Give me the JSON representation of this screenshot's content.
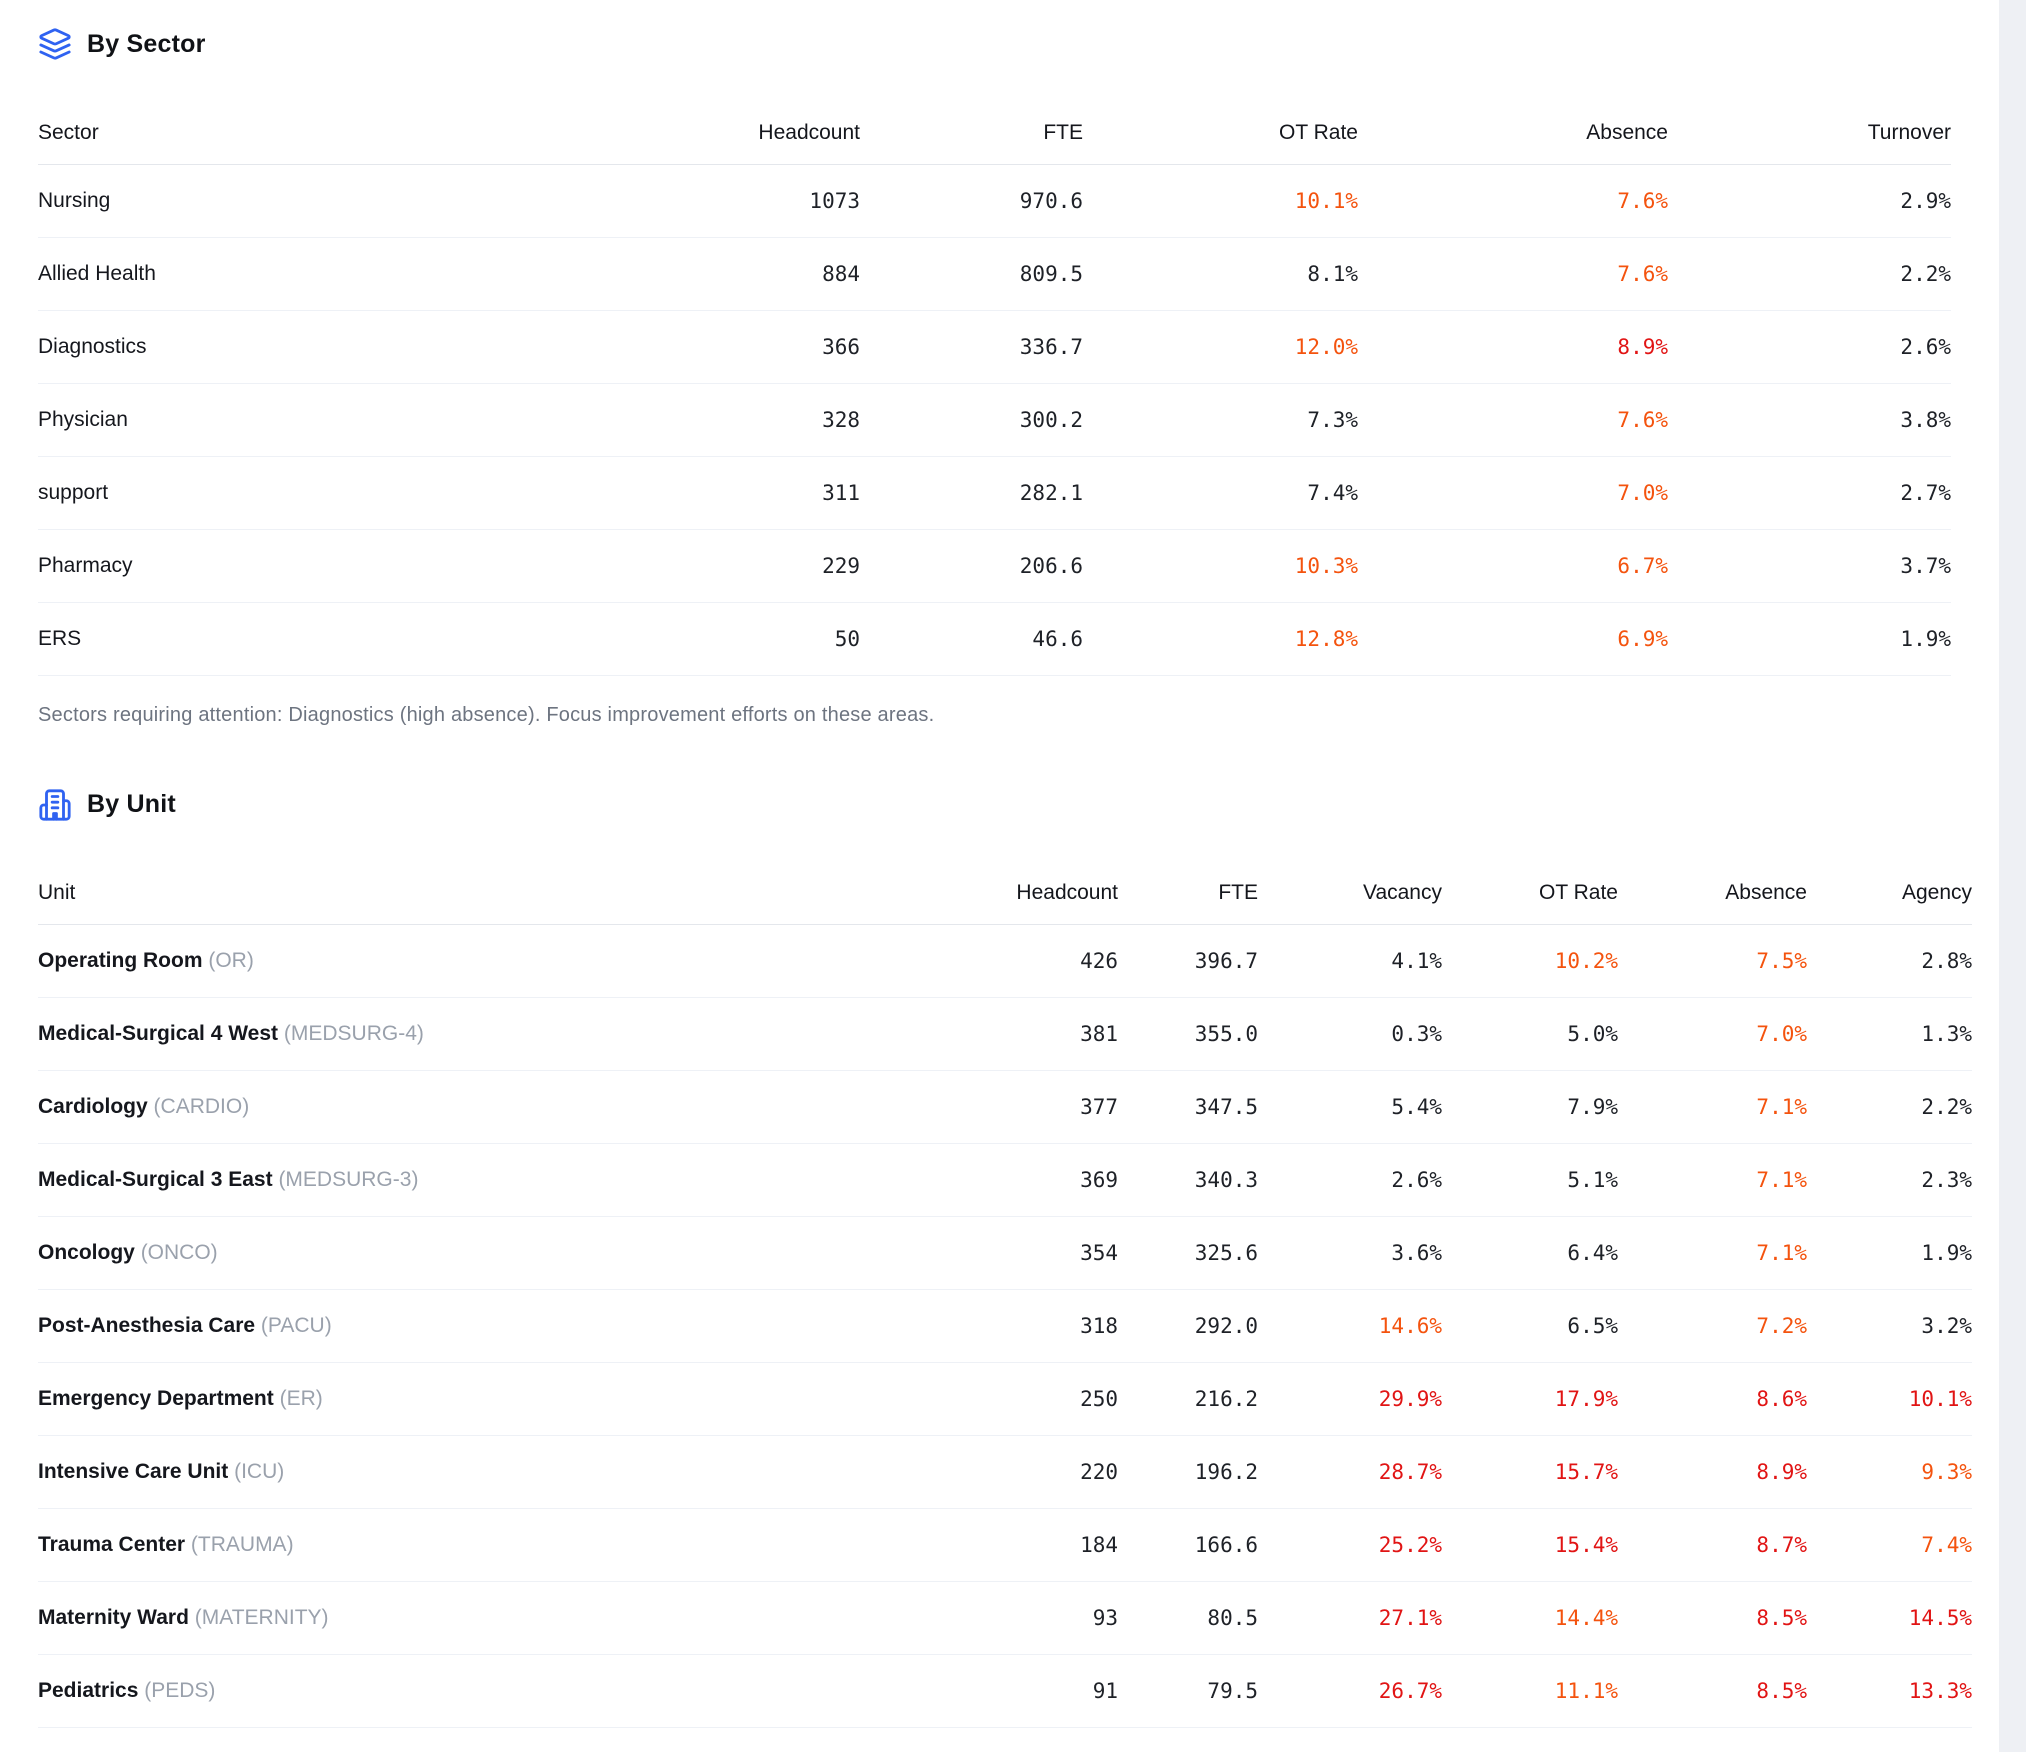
{
  "colors": {
    "accent_blue": "#2f62f1",
    "warn_orange": "#f4530e",
    "bad_red": "#e11414"
  },
  "tables": {
    "sector": {
      "title": "By Sector",
      "icon": "layers-icon",
      "columns": [
        {
          "label": "Sector",
          "align": "left"
        },
        {
          "label": "Headcount"
        },
        {
          "label": "FTE"
        },
        {
          "label": "OT Rate"
        },
        {
          "label": "Absence"
        },
        {
          "label": "Turnover"
        }
      ],
      "rows": [
        {
          "name": {
            "label": "Nursing"
          },
          "cells": [
            {
              "t": "1073"
            },
            {
              "t": "970.6"
            },
            {
              "t": "10.1%",
              "c": "warn"
            },
            {
              "t": "7.6%",
              "c": "warn"
            },
            {
              "t": "2.9%"
            }
          ]
        },
        {
          "name": {
            "label": "Allied Health"
          },
          "cells": [
            {
              "t": "884"
            },
            {
              "t": "809.5"
            },
            {
              "t": "8.1%"
            },
            {
              "t": "7.6%",
              "c": "warn"
            },
            {
              "t": "2.2%"
            }
          ]
        },
        {
          "name": {
            "label": "Diagnostics"
          },
          "cells": [
            {
              "t": "366"
            },
            {
              "t": "336.7"
            },
            {
              "t": "12.0%",
              "c": "warn"
            },
            {
              "t": "8.9%",
              "c": "bad"
            },
            {
              "t": "2.6%"
            }
          ]
        },
        {
          "name": {
            "label": "Physician"
          },
          "cells": [
            {
              "t": "328"
            },
            {
              "t": "300.2"
            },
            {
              "t": "7.3%"
            },
            {
              "t": "7.6%",
              "c": "warn"
            },
            {
              "t": "3.8%"
            }
          ]
        },
        {
          "name": {
            "label": "support"
          },
          "cells": [
            {
              "t": "311"
            },
            {
              "t": "282.1"
            },
            {
              "t": "7.4%"
            },
            {
              "t": "7.0%",
              "c": "warn"
            },
            {
              "t": "2.7%"
            }
          ]
        },
        {
          "name": {
            "label": "Pharmacy"
          },
          "cells": [
            {
              "t": "229"
            },
            {
              "t": "206.6"
            },
            {
              "t": "10.3%",
              "c": "warn"
            },
            {
              "t": "6.7%",
              "c": "warn"
            },
            {
              "t": "3.7%"
            }
          ]
        },
        {
          "name": {
            "label": "ERS"
          },
          "cells": [
            {
              "t": "50"
            },
            {
              "t": "46.6"
            },
            {
              "t": "12.8%",
              "c": "warn"
            },
            {
              "t": "6.9%",
              "c": "warn"
            },
            {
              "t": "1.9%"
            }
          ]
        }
      ],
      "note": "Sectors requiring attention: Diagnostics (high absence). Focus improvement efforts on these areas."
    },
    "unit": {
      "title": "By Unit",
      "icon": "building-icon",
      "columns": [
        {
          "label": "Unit",
          "align": "left"
        },
        {
          "label": "Headcount"
        },
        {
          "label": "FTE"
        },
        {
          "label": "Vacancy"
        },
        {
          "label": "OT Rate"
        },
        {
          "label": "Absence"
        },
        {
          "label": "Agency"
        }
      ],
      "rows": [
        {
          "name": {
            "label": "Operating Room",
            "code": "(OR)"
          },
          "cells": [
            {
              "t": "426"
            },
            {
              "t": "396.7"
            },
            {
              "t": "4.1%"
            },
            {
              "t": "10.2%",
              "c": "warn"
            },
            {
              "t": "7.5%",
              "c": "warn"
            },
            {
              "t": "2.8%"
            }
          ]
        },
        {
          "name": {
            "label": "Medical-Surgical 4 West",
            "code": "(MEDSURG-4)"
          },
          "cells": [
            {
              "t": "381"
            },
            {
              "t": "355.0"
            },
            {
              "t": "0.3%"
            },
            {
              "t": "5.0%"
            },
            {
              "t": "7.0%",
              "c": "warn"
            },
            {
              "t": "1.3%"
            }
          ]
        },
        {
          "name": {
            "label": "Cardiology",
            "code": "(CARDIO)"
          },
          "cells": [
            {
              "t": "377"
            },
            {
              "t": "347.5"
            },
            {
              "t": "5.4%"
            },
            {
              "t": "7.9%"
            },
            {
              "t": "7.1%",
              "c": "warn"
            },
            {
              "t": "2.2%"
            }
          ]
        },
        {
          "name": {
            "label": "Medical-Surgical 3 East",
            "code": "(MEDSURG-3)"
          },
          "cells": [
            {
              "t": "369"
            },
            {
              "t": "340.3"
            },
            {
              "t": "2.6%"
            },
            {
              "t": "5.1%"
            },
            {
              "t": "7.1%",
              "c": "warn"
            },
            {
              "t": "2.3%"
            }
          ]
        },
        {
          "name": {
            "label": "Oncology",
            "code": "(ONCO)"
          },
          "cells": [
            {
              "t": "354"
            },
            {
              "t": "325.6"
            },
            {
              "t": "3.6%"
            },
            {
              "t": "6.4%"
            },
            {
              "t": "7.1%",
              "c": "warn"
            },
            {
              "t": "1.9%"
            }
          ]
        },
        {
          "name": {
            "label": "Post-Anesthesia Care",
            "code": "(PACU)"
          },
          "cells": [
            {
              "t": "318"
            },
            {
              "t": "292.0"
            },
            {
              "t": "14.6%",
              "c": "warn"
            },
            {
              "t": "6.5%"
            },
            {
              "t": "7.2%",
              "c": "warn"
            },
            {
              "t": "3.2%"
            }
          ]
        },
        {
          "name": {
            "label": "Emergency Department",
            "code": "(ER)"
          },
          "cells": [
            {
              "t": "250"
            },
            {
              "t": "216.2"
            },
            {
              "t": "29.9%",
              "c": "bad"
            },
            {
              "t": "17.9%",
              "c": "bad"
            },
            {
              "t": "8.6%",
              "c": "bad"
            },
            {
              "t": "10.1%",
              "c": "bad"
            }
          ]
        },
        {
          "name": {
            "label": "Intensive Care Unit",
            "code": "(ICU)"
          },
          "cells": [
            {
              "t": "220"
            },
            {
              "t": "196.2"
            },
            {
              "t": "28.7%",
              "c": "bad"
            },
            {
              "t": "15.7%",
              "c": "bad"
            },
            {
              "t": "8.9%",
              "c": "bad"
            },
            {
              "t": "9.3%",
              "c": "warn"
            }
          ]
        },
        {
          "name": {
            "label": "Trauma Center",
            "code": "(TRAUMA)"
          },
          "cells": [
            {
              "t": "184"
            },
            {
              "t": "166.6"
            },
            {
              "t": "25.2%",
              "c": "bad"
            },
            {
              "t": "15.4%",
              "c": "bad"
            },
            {
              "t": "8.7%",
              "c": "bad"
            },
            {
              "t": "7.4%",
              "c": "warn"
            }
          ]
        },
        {
          "name": {
            "label": "Maternity Ward",
            "code": "(MATERNITY)"
          },
          "cells": [
            {
              "t": "93"
            },
            {
              "t": "80.5"
            },
            {
              "t": "27.1%",
              "c": "bad"
            },
            {
              "t": "14.4%",
              "c": "warn"
            },
            {
              "t": "8.5%",
              "c": "bad"
            },
            {
              "t": "14.5%",
              "c": "bad"
            }
          ]
        },
        {
          "name": {
            "label": "Pediatrics",
            "code": "(PEDS)"
          },
          "cells": [
            {
              "t": "91"
            },
            {
              "t": "79.5"
            },
            {
              "t": "26.7%",
              "c": "bad"
            },
            {
              "t": "11.1%",
              "c": "warn"
            },
            {
              "t": "8.5%",
              "c": "bad"
            },
            {
              "t": "13.3%",
              "c": "bad"
            }
          ]
        }
      ]
    }
  }
}
